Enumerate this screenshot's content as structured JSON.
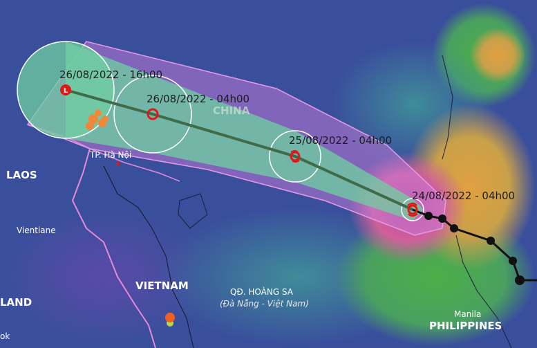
{
  "map": {
    "forecast_points": [
      {
        "label": "26/08/2022 - 16h00",
        "symbol": "low-pressure-icon"
      },
      {
        "label": "26/08/2022 - 04h00",
        "symbol": "tropical-depression-icon"
      },
      {
        "label": "25/08/2022 - 04h00",
        "symbol": "tropical-storm-icon"
      },
      {
        "label": "24/08/2022 - 04h00",
        "symbol": "typhoon-icon"
      }
    ],
    "place_labels": {
      "china": "CHINA",
      "laos": "LAOS",
      "vietnam": "VIETNAM",
      "thailand_partial": "LAND",
      "bangkok_partial": "ok",
      "philippines": "PHILIPPINES",
      "hanoi": "TP. Hà Nội",
      "vientiane": "Vientiane",
      "manila": "Manila",
      "paracel": "QĐ. HOÀNG SA",
      "paracel_sub": "(Đà Nẵng - Việt Nam)"
    },
    "colors": {
      "cone_fill": "#6fd0a0",
      "outer_envelope": "#c77bd8",
      "track_line": "#3f6b48",
      "past_track": "#111111",
      "marker_red": "#e01818",
      "border_pink": "#e48ad9"
    }
  }
}
